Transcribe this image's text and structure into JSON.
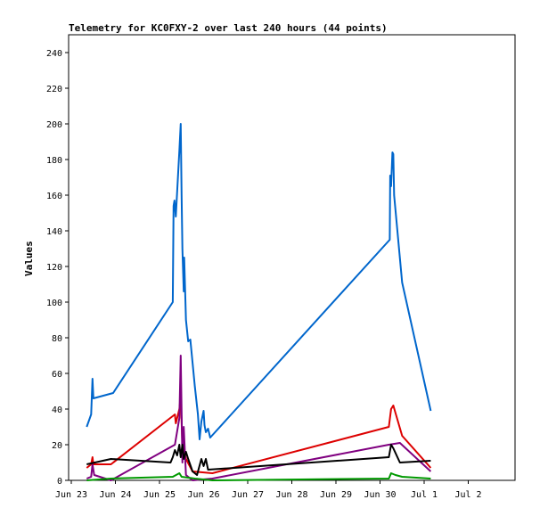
{
  "chart_data": {
    "type": "line",
    "title": "Telemetry for KC0FXY-2 over last 240 hours (44 points)",
    "xlabel": "",
    "ylabel": "Values",
    "ylim": [
      0,
      250
    ],
    "xlim": [
      23,
      33
    ],
    "yticks": [
      0,
      20,
      40,
      60,
      80,
      100,
      120,
      140,
      160,
      180,
      200,
      220,
      240
    ],
    "xticks": [
      {
        "x": 23,
        "label": "Jun 23"
      },
      {
        "x": 24,
        "label": "Jun 24"
      },
      {
        "x": 25,
        "label": "Jun 25"
      },
      {
        "x": 26,
        "label": "Jun 26"
      },
      {
        "x": 27,
        "label": "Jun 27"
      },
      {
        "x": 28,
        "label": "Jun 28"
      },
      {
        "x": 29,
        "label": "Jun 29"
      },
      {
        "x": 30,
        "label": "Jun 30"
      },
      {
        "x": 31,
        "label": "Jul 1"
      },
      {
        "x": 32,
        "label": "Jul 2"
      }
    ],
    "grid": false,
    "series": [
      {
        "color": "#0066cc",
        "points": [
          [
            23.35,
            30
          ],
          [
            23.45,
            37
          ],
          [
            23.48,
            57
          ],
          [
            23.5,
            46
          ],
          [
            23.95,
            49
          ],
          [
            25.3,
            100
          ],
          [
            25.32,
            154
          ],
          [
            25.34,
            157
          ],
          [
            25.37,
            148
          ],
          [
            25.45,
            185
          ],
          [
            25.48,
            200
          ],
          [
            25.5,
            160
          ],
          [
            25.52,
            130
          ],
          [
            25.55,
            106
          ],
          [
            25.56,
            125
          ],
          [
            25.6,
            90
          ],
          [
            25.65,
            78
          ],
          [
            25.7,
            79
          ],
          [
            25.8,
            53
          ],
          [
            25.87,
            37
          ],
          [
            25.91,
            23
          ],
          [
            25.95,
            33
          ],
          [
            26.0,
            39
          ],
          [
            26.02,
            31
          ],
          [
            26.05,
            27
          ],
          [
            26.1,
            29
          ],
          [
            26.15,
            24
          ],
          [
            30.22,
            135
          ],
          [
            30.23,
            171
          ],
          [
            30.25,
            165
          ],
          [
            30.28,
            184
          ],
          [
            30.3,
            183
          ],
          [
            30.32,
            160
          ],
          [
            30.5,
            111
          ],
          [
            31.15,
            39
          ]
        ]
      },
      {
        "color": "#dd0000",
        "points": [
          [
            23.35,
            7
          ],
          [
            23.45,
            9
          ],
          [
            23.48,
            13
          ],
          [
            23.5,
            9
          ],
          [
            23.9,
            9
          ],
          [
            25.35,
            37
          ],
          [
            25.37,
            32
          ],
          [
            25.45,
            40
          ],
          [
            25.48,
            47
          ],
          [
            25.52,
            20
          ],
          [
            25.6,
            12
          ],
          [
            25.75,
            5
          ],
          [
            26.2,
            4
          ],
          [
            30.2,
            30
          ],
          [
            30.25,
            40
          ],
          [
            30.3,
            42
          ],
          [
            30.5,
            25
          ],
          [
            31.15,
            7
          ]
        ]
      },
      {
        "color": "#800080",
        "points": [
          [
            23.35,
            1
          ],
          [
            23.45,
            2
          ],
          [
            23.48,
            9
          ],
          [
            23.52,
            3
          ],
          [
            23.9,
            0
          ],
          [
            25.35,
            20
          ],
          [
            25.37,
            23
          ],
          [
            25.45,
            35
          ],
          [
            25.48,
            70
          ],
          [
            25.52,
            10
          ],
          [
            25.55,
            30
          ],
          [
            25.6,
            3
          ],
          [
            25.75,
            0
          ],
          [
            26.2,
            1
          ],
          [
            30.2,
            20
          ],
          [
            30.45,
            21
          ],
          [
            31.15,
            5
          ]
        ]
      },
      {
        "color": "#000000",
        "points": [
          [
            23.35,
            9
          ],
          [
            23.9,
            12
          ],
          [
            25.25,
            10
          ],
          [
            25.3,
            13
          ],
          [
            25.35,
            17
          ],
          [
            25.4,
            14
          ],
          [
            25.45,
            20
          ],
          [
            25.48,
            13
          ],
          [
            25.52,
            20
          ],
          [
            25.55,
            12
          ],
          [
            25.6,
            16
          ],
          [
            25.65,
            12
          ],
          [
            25.75,
            5
          ],
          [
            25.85,
            3
          ],
          [
            25.95,
            12
          ],
          [
            26.0,
            8
          ],
          [
            26.05,
            12
          ],
          [
            26.1,
            6
          ],
          [
            30.2,
            13
          ],
          [
            30.25,
            20
          ],
          [
            30.3,
            18
          ],
          [
            30.45,
            10
          ],
          [
            31.15,
            11
          ]
        ]
      },
      {
        "color": "#009900",
        "points": [
          [
            23.35,
            0
          ],
          [
            23.9,
            1
          ],
          [
            25.3,
            2
          ],
          [
            25.45,
            4
          ],
          [
            25.5,
            2
          ],
          [
            25.8,
            1
          ],
          [
            26.2,
            0
          ],
          [
            30.2,
            1
          ],
          [
            30.25,
            4
          ],
          [
            30.35,
            3
          ],
          [
            30.5,
            2
          ],
          [
            31.15,
            1
          ]
        ]
      }
    ]
  }
}
